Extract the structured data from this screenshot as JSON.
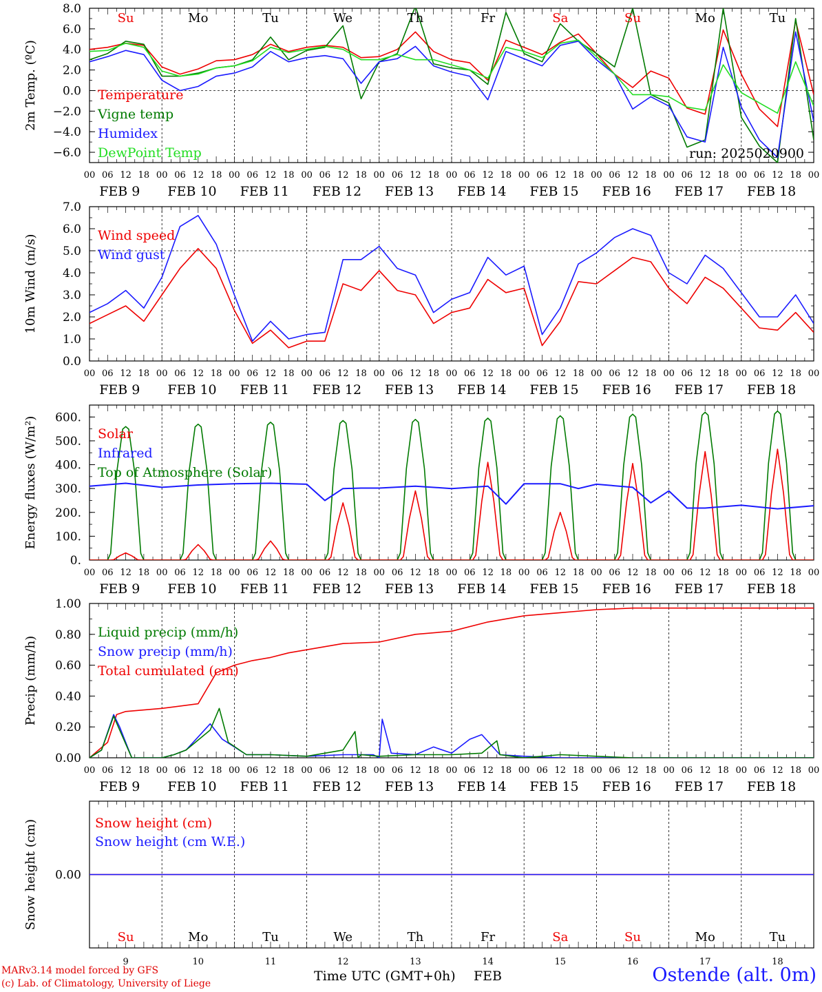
{
  "colors": {
    "red": "#ee0000",
    "green": "#007a00",
    "blue": "#1a1aff",
    "lightgreen": "#22dd22",
    "weekend": "#ee0000",
    "weekday": "#000000"
  },
  "time_axis": {
    "hour_labels": [
      "00",
      "06",
      "12",
      "18"
    ],
    "end_label": "00",
    "date_labels": [
      "FEB  9",
      "FEB 10",
      "FEB 11",
      "FEB 12",
      "FEB 13",
      "FEB 14",
      "FEB 15",
      "FEB 16",
      "FEB 17",
      "FEB 18"
    ],
    "weekdays": [
      "Su",
      "Mo",
      "Tu",
      "We",
      "Th",
      "Fr",
      "Sa",
      "Su",
      "Mo",
      "Tu"
    ],
    "weekend_flags": [
      true,
      false,
      false,
      false,
      false,
      false,
      true,
      true,
      false,
      false
    ],
    "day_numbers": [
      "9",
      "10",
      "11",
      "12",
      "13",
      "14",
      "15",
      "16",
      "17",
      "18"
    ],
    "x_title": "Time UTC (GMT+0h)",
    "month": "FEB"
  },
  "chart_data": [
    {
      "id": "temperature",
      "type": "line",
      "ylabel": "2m Temp. (ºC)",
      "ylim": [
        -7,
        8
      ],
      "yticks": [
        -6,
        -4,
        -2,
        0,
        2,
        4,
        6,
        8
      ],
      "ytick_labels": [
        "−6.0",
        "−4.0",
        "−2.0",
        "0.0",
        "2.0",
        "4.0",
        "6.0",
        "8.0"
      ],
      "dashed_y": [
        0
      ],
      "run_label": "run: 2025020900",
      "legend": [
        "Temperature",
        "Vigne temp",
        "Humidex",
        "DewPoint Temp"
      ],
      "x_hours": [
        0,
        6,
        12,
        18,
        24,
        30,
        36,
        42,
        48,
        54,
        60,
        66,
        72,
        78,
        84,
        90,
        96,
        102,
        108,
        114,
        120,
        126,
        132,
        138,
        144,
        150,
        156,
        162,
        168,
        174,
        180,
        186,
        192,
        198,
        204,
        210,
        216,
        222,
        228,
        234,
        240
      ],
      "series": [
        {
          "name": "Temperature",
          "color": "red",
          "values": [
            4.0,
            4.2,
            4.6,
            4.4,
            2.3,
            1.6,
            2.1,
            2.9,
            3.0,
            3.5,
            4.5,
            3.8,
            4.2,
            4.4,
            4.2,
            3.2,
            3.3,
            4.0,
            5.7,
            3.8,
            3.0,
            2.7,
            1.0,
            4.9,
            4.2,
            3.5,
            4.7,
            5.5,
            3.6,
            1.6,
            0.3,
            1.9,
            1.2,
            -1.7,
            -2.3,
            5.9,
            1.6,
            -1.8,
            -3.5,
            6.8,
            -0.4
          ]
        },
        {
          "name": "Vigne temp",
          "color": "green",
          "values": [
            3.0,
            3.6,
            4.8,
            4.5,
            1.4,
            1.4,
            1.7,
            2.2,
            2.4,
            3.0,
            5.2,
            3.0,
            3.9,
            4.2,
            6.3,
            -0.8,
            2.8,
            3.6,
            8.2,
            2.6,
            2.2,
            2.0,
            0.6,
            7.6,
            3.6,
            2.8,
            6.5,
            4.8,
            3.6,
            2.3,
            8.0,
            -0.4,
            -1.2,
            -5.5,
            -4.8,
            8.0,
            -2.6,
            -5.4,
            -7.0,
            7.0,
            -4.8
          ]
        },
        {
          "name": "Humidex",
          "color": "blue",
          "values": [
            2.8,
            3.3,
            3.9,
            3.5,
            1.0,
            0.0,
            0.4,
            1.4,
            1.7,
            2.3,
            3.8,
            2.8,
            3.2,
            3.4,
            3.1,
            0.7,
            2.8,
            3.1,
            4.3,
            2.4,
            1.8,
            1.4,
            -0.9,
            3.8,
            3.1,
            2.4,
            4.4,
            4.8,
            3.0,
            1.6,
            -1.8,
            -0.6,
            -1.5,
            -4.5,
            -5.0,
            4.2,
            -1.6,
            -4.8,
            -6.5,
            5.7,
            -3.0
          ]
        },
        {
          "name": "DewPoint Temp",
          "color": "lightgreen",
          "values": [
            3.8,
            3.9,
            4.6,
            4.2,
            1.9,
            1.4,
            1.6,
            2.2,
            2.4,
            2.9,
            4.2,
            3.7,
            4.0,
            4.3,
            4.0,
            3.0,
            3.0,
            3.5,
            3.0,
            3.0,
            2.5,
            2.0,
            1.2,
            4.2,
            3.8,
            3.2,
            4.6,
            4.9,
            3.3,
            1.6,
            -0.4,
            -0.4,
            -0.6,
            -1.6,
            -1.9,
            2.5,
            -0.2,
            -1.2,
            -2.2,
            2.8,
            -1.5
          ]
        }
      ]
    },
    {
      "id": "wind",
      "type": "line",
      "ylabel": "10m Wind (m/s)",
      "ylim": [
        0,
        7
      ],
      "yticks": [
        0,
        1,
        2,
        3,
        4,
        5,
        6,
        7
      ],
      "ytick_labels": [
        "0.0",
        "1.0",
        "2.0",
        "3.0",
        "4.0",
        "5.0",
        "6.0",
        "7.0"
      ],
      "dashed_y": [
        5
      ],
      "legend": [
        "Wind speed",
        "Wind gust"
      ],
      "x_hours": [
        0,
        6,
        12,
        18,
        24,
        30,
        36,
        42,
        48,
        54,
        60,
        66,
        72,
        78,
        84,
        90,
        96,
        102,
        108,
        114,
        120,
        126,
        132,
        138,
        144,
        150,
        156,
        162,
        168,
        174,
        180,
        186,
        192,
        198,
        204,
        210,
        216,
        222,
        228,
        234,
        240
      ],
      "series": [
        {
          "name": "Wind speed",
          "color": "red",
          "values": [
            1.7,
            2.1,
            2.5,
            1.8,
            3.0,
            4.2,
            5.1,
            4.2,
            2.3,
            0.8,
            1.4,
            0.6,
            0.9,
            0.9,
            3.5,
            3.2,
            4.1,
            3.2,
            3.0,
            1.7,
            2.2,
            2.4,
            3.7,
            3.1,
            3.3,
            0.7,
            1.8,
            3.6,
            3.5,
            4.1,
            4.7,
            4.5,
            3.3,
            2.6,
            3.8,
            3.3,
            2.4,
            1.5,
            1.4,
            2.2,
            1.3
          ]
        },
        {
          "name": "Wind gust",
          "color": "blue",
          "values": [
            2.2,
            2.6,
            3.2,
            2.4,
            3.8,
            6.1,
            6.6,
            5.3,
            3.0,
            0.9,
            1.8,
            1.0,
            1.2,
            1.3,
            4.6,
            4.6,
            5.2,
            4.2,
            3.9,
            2.2,
            2.8,
            3.1,
            4.7,
            3.9,
            4.3,
            1.2,
            2.4,
            4.4,
            4.9,
            5.6,
            6.0,
            5.7,
            4.0,
            3.5,
            4.8,
            4.2,
            3.1,
            2.0,
            2.0,
            3.0,
            1.7
          ]
        }
      ]
    },
    {
      "id": "energy",
      "type": "line",
      "ylabel": "Energy fluxes (W/m²)",
      "ylim": [
        0,
        650
      ],
      "yticks": [
        0,
        100,
        200,
        300,
        400,
        500,
        600
      ],
      "ytick_labels": [
        "0.",
        "100.",
        "200.",
        "300.",
        "400.",
        "500.",
        "600."
      ],
      "dashed_y": [],
      "legend": [
        "Solar",
        "Infrared",
        "Top of Atmosphere (Solar)"
      ],
      "x_hours": [
        0,
        6,
        7,
        9,
        11,
        12,
        13,
        15,
        17,
        18,
        24
      ],
      "series": [
        {
          "name": "Top of Atmosphere (Solar)",
          "color": "green",
          "daily_peaks": [
            560,
            570,
            578,
            585,
            590,
            595,
            605,
            612,
            620,
            625
          ]
        },
        {
          "name": "Solar",
          "color": "red",
          "daily_peaks": [
            30,
            65,
            80,
            240,
            290,
            410,
            200,
            405,
            455,
            465
          ]
        },
        {
          "name": "Infrared",
          "color": "blue",
          "x_hours": [
            0,
            12,
            24,
            36,
            48,
            60,
            72,
            78,
            84,
            90,
            96,
            108,
            120,
            132,
            138,
            144,
            156,
            162,
            168,
            180,
            186,
            192,
            198,
            204,
            216,
            228,
            240
          ],
          "values": [
            310,
            322,
            305,
            315,
            320,
            322,
            318,
            250,
            300,
            302,
            302,
            310,
            300,
            310,
            235,
            320,
            320,
            300,
            318,
            305,
            240,
            290,
            218,
            218,
            230,
            215,
            228
          ]
        }
      ]
    },
    {
      "id": "precip",
      "type": "line",
      "ylabel": "Precip (mm/h)",
      "ylim": [
        0,
        1.0
      ],
      "yticks": [
        0,
        0.2,
        0.4,
        0.6,
        0.8,
        1.0
      ],
      "ytick_labels": [
        "0.00",
        "0.20",
        "0.40",
        "0.60",
        "0.80",
        "1.00"
      ],
      "dashed_y": [],
      "legend": [
        "Liquid precip (mm/h)",
        "Snow precip (mm/h)",
        "Total cumulated (cm)"
      ],
      "x_hours": [
        0,
        6,
        9,
        12,
        18,
        24,
        36,
        42,
        48,
        54,
        60,
        66,
        72,
        84,
        96,
        108,
        120,
        132,
        144,
        156,
        168,
        180,
        192,
        204,
        216,
        228,
        240
      ],
      "series": [
        {
          "name": "Total cumulated",
          "color": "red",
          "values": [
            0.0,
            0.1,
            0.28,
            0.3,
            0.31,
            0.32,
            0.35,
            0.55,
            0.6,
            0.63,
            0.65,
            0.68,
            0.7,
            0.74,
            0.75,
            0.8,
            0.82,
            0.88,
            0.92,
            0.94,
            0.96,
            0.97,
            0.97,
            0.97,
            0.97,
            0.97,
            0.97
          ]
        },
        {
          "name": "Snow precip",
          "color": "blue",
          "x_hours": [
            0,
            4,
            8,
            10,
            14,
            18,
            24,
            28,
            32,
            40,
            44,
            52,
            60,
            72,
            84,
            94,
            96,
            97,
            100,
            108,
            114,
            120,
            126,
            130,
            136,
            144,
            156,
            168,
            180,
            192,
            204,
            216,
            228,
            240
          ],
          "values": [
            0.0,
            0.05,
            0.28,
            0.2,
            0.0,
            0.0,
            0.0,
            0.02,
            0.05,
            0.22,
            0.12,
            0.02,
            0.02,
            0.01,
            0.02,
            0.02,
            0.0,
            0.25,
            0.03,
            0.02,
            0.07,
            0.03,
            0.12,
            0.15,
            0.02,
            0.01,
            0.0,
            0.0,
            0.0,
            0.0,
            0.0,
            0.0,
            0.0,
            0.0
          ]
        },
        {
          "name": "Liquid precip",
          "color": "green",
          "x_hours": [
            0,
            4,
            8,
            10,
            14,
            18,
            24,
            28,
            32,
            40,
            43,
            46,
            52,
            60,
            72,
            84,
            88,
            89,
            90,
            96,
            108,
            120,
            130,
            135,
            136,
            140,
            144,
            156,
            168,
            180,
            192,
            204,
            216,
            228,
            240
          ],
          "values": [
            0.0,
            0.05,
            0.27,
            0.18,
            0.0,
            0.0,
            0.0,
            0.02,
            0.05,
            0.18,
            0.32,
            0.1,
            0.02,
            0.02,
            0.01,
            0.05,
            0.17,
            0.0,
            0.02,
            0.01,
            0.02,
            0.02,
            0.03,
            0.11,
            0.02,
            0.01,
            0.0,
            0.02,
            0.01,
            0.0,
            0.0,
            0.0,
            0.0,
            0.0,
            0.0
          ]
        }
      ]
    },
    {
      "id": "snow",
      "type": "line",
      "ylabel": "Snow height (cm)",
      "ylim": [
        -1,
        1
      ],
      "yticks": [
        0
      ],
      "ytick_labels": [
        "0.00"
      ],
      "dashed_y": [],
      "legend": [
        "Snow height (cm)",
        "Snow height (cm W.E.)"
      ],
      "x_hours": [
        0,
        240
      ],
      "series": [
        {
          "name": "Snow height (cm)",
          "color": "red",
          "values": [
            0.0,
            0.0
          ]
        },
        {
          "name": "Snow height (cm W.E.)",
          "color": "blue",
          "values": [
            0.0,
            0.0
          ]
        }
      ]
    }
  ],
  "footer": {
    "model_line": "MARv3.14 model forced by GFS",
    "credit_line": "(c) Lab. of Climatology, University of Liege",
    "station": "Ostende (alt. 0m)"
  }
}
